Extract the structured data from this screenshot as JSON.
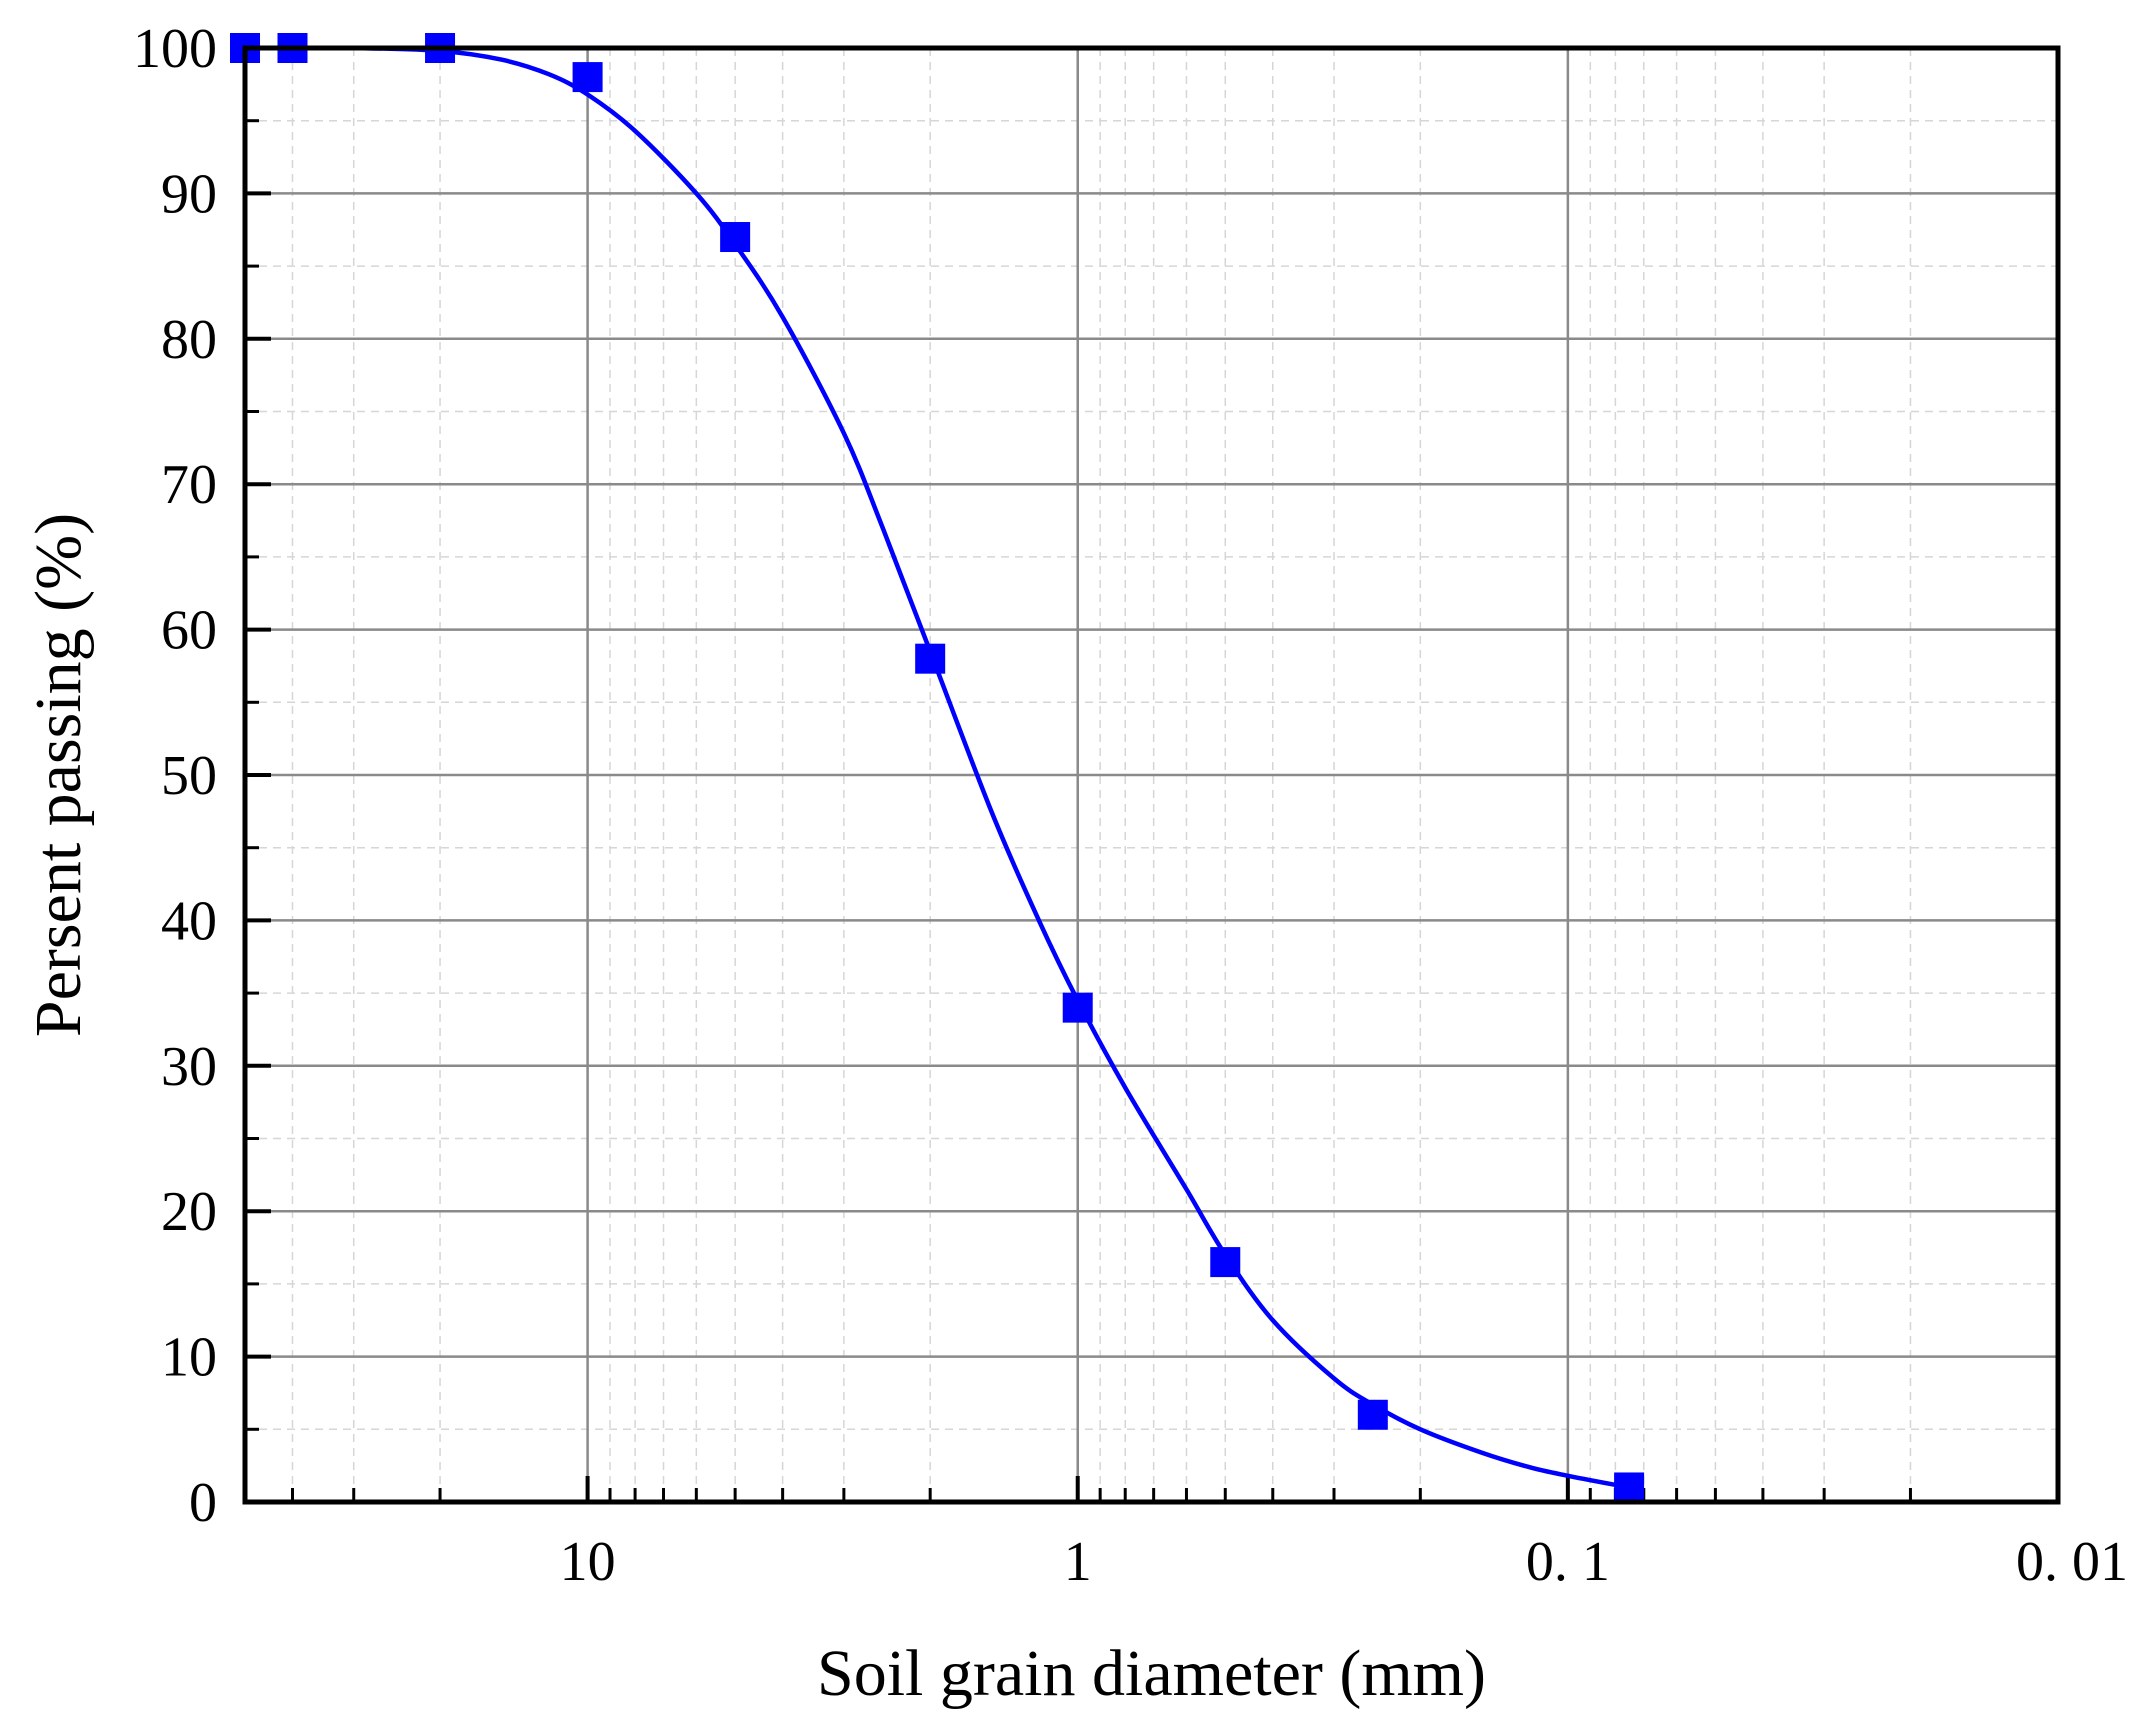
{
  "chart_data": {
    "type": "scatter",
    "xlabel": "Soil grain diameter (mm)",
    "ylabel": "Persent passing (%)",
    "x_scale": "log",
    "x_reversed": true,
    "xlim": [
      50,
      0.01
    ],
    "ylim": [
      0,
      100
    ],
    "x_tick_values": [
      10,
      1,
      0.1,
      0.01
    ],
    "x_tick_labels": [
      "10",
      "1",
      "0. 1",
      "0. 01"
    ],
    "y_tick_values": [
      0,
      10,
      20,
      30,
      40,
      50,
      60,
      70,
      80,
      90,
      100
    ],
    "y_tick_labels": [
      "0",
      "10",
      "20",
      "30",
      "40",
      "50",
      "60",
      "70",
      "80",
      "90",
      "100"
    ],
    "grid": true,
    "marker_color": "#0000ff",
    "line_color": "#0000ff",
    "series": [
      {
        "kind": "markers",
        "marker": "square",
        "x": [
          50,
          40,
          20,
          10,
          5,
          2,
          1,
          0.5,
          0.25,
          0.075
        ],
        "y": [
          100,
          100,
          100,
          98,
          87,
          58,
          34,
          16.5,
          6,
          1
        ]
      },
      {
        "kind": "fitted-curve",
        "x": [
          50,
          40,
          30,
          20,
          15,
          12,
          10,
          8,
          6,
          5,
          4,
          3,
          2.5,
          2,
          1.5,
          1.2,
          1,
          0.8,
          0.6,
          0.5,
          0.4,
          0.3,
          0.25,
          0.2,
          0.15,
          0.12,
          0.1,
          0.075
        ],
        "y": [
          100,
          100,
          100,
          99.8,
          99.2,
          98.2,
          96.8,
          94.3,
          90,
          86.5,
          81.5,
          73.5,
          67,
          58.5,
          47.5,
          40,
          34.5,
          28.5,
          21.5,
          17,
          12.5,
          8.5,
          6.7,
          5.0,
          3.4,
          2.4,
          1.8,
          1.0
        ]
      }
    ]
  }
}
